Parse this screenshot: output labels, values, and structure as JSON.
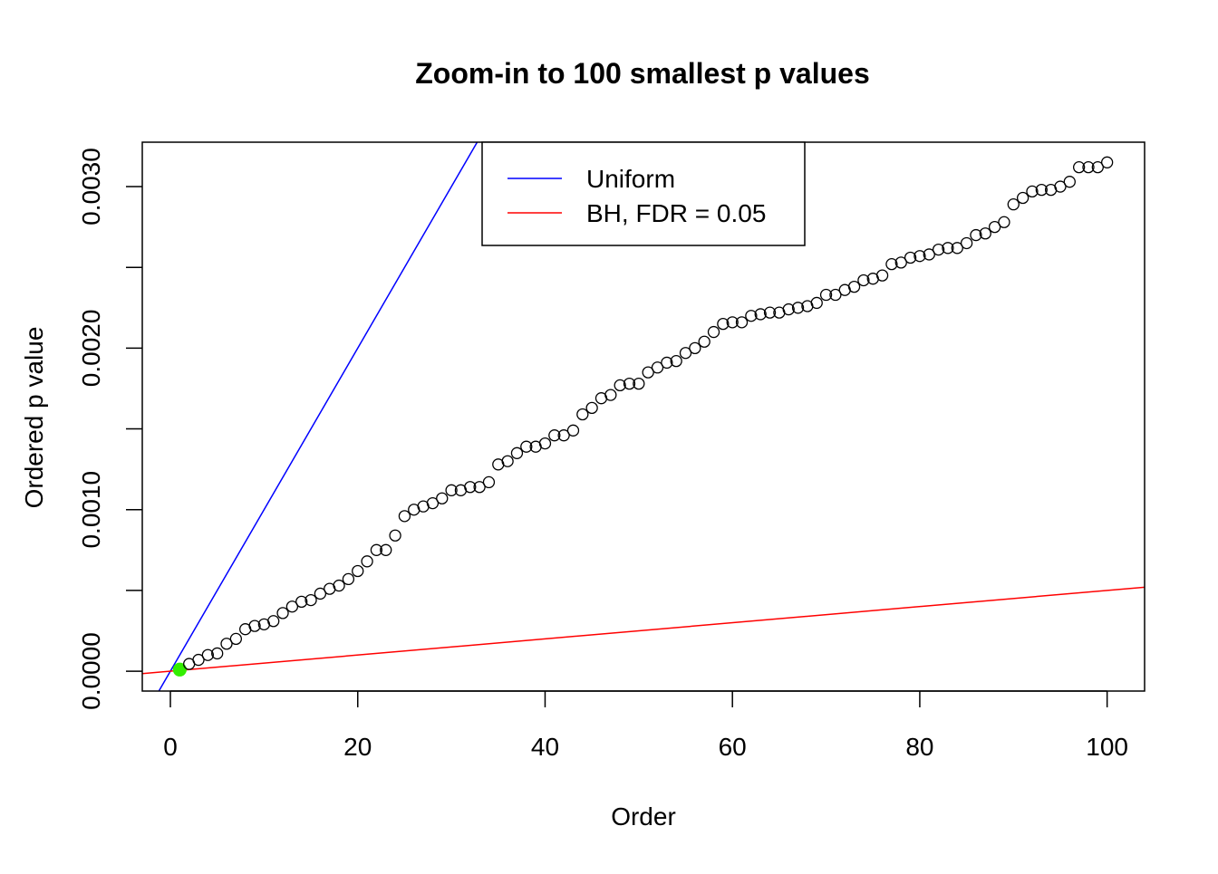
{
  "chart_data": {
    "type": "scatter",
    "title": "Zoom-in to 100 smallest p values",
    "xlabel": "Order",
    "ylabel": "Ordered p value",
    "xlim": [
      -3,
      104
    ],
    "ylim": [
      -0.000123,
      0.003275
    ],
    "x_ticks": [
      0,
      20,
      40,
      60,
      80,
      100
    ],
    "x_tick_labels": [
      "0",
      "20",
      "40",
      "60",
      "80",
      "100"
    ],
    "y_ticks": [
      0,
      0.0005,
      0.001,
      0.0015,
      0.002,
      0.0025,
      0.003
    ],
    "y_tick_labels": [
      "0.0000",
      "",
      "0.0010",
      "",
      "0.0020",
      "",
      "0.0030"
    ],
    "grid": false,
    "legend_position": "top-center",
    "legend": [
      {
        "label": "Uniform",
        "color": "#0000ff"
      },
      {
        "label": "BH, FDR = 0.05",
        "color": "#ff0000"
      }
    ],
    "lines": [
      {
        "name": "Uniform",
        "slope": 0.0001,
        "intercept": 0,
        "color": "#0000ff"
      },
      {
        "name": "BH, FDR = 0.05",
        "slope": 5e-06,
        "intercept": 0,
        "color": "#ff0000"
      }
    ],
    "highlight": {
      "x": 1,
      "color": "#33ee00"
    },
    "series": [
      {
        "name": "Ordered p values",
        "x": [
          1,
          2,
          3,
          4,
          5,
          6,
          7,
          8,
          9,
          10,
          11,
          12,
          13,
          14,
          15,
          16,
          17,
          18,
          19,
          20,
          21,
          22,
          23,
          24,
          25,
          26,
          27,
          28,
          29,
          30,
          31,
          32,
          33,
          34,
          35,
          36,
          37,
          38,
          39,
          40,
          41,
          42,
          43,
          44,
          45,
          46,
          47,
          48,
          49,
          50,
          51,
          52,
          53,
          54,
          55,
          56,
          57,
          58,
          59,
          60,
          61,
          62,
          63,
          64,
          65,
          66,
          67,
          68,
          69,
          70,
          71,
          72,
          73,
          74,
          75,
          76,
          77,
          78,
          79,
          80,
          81,
          82,
          83,
          84,
          85,
          86,
          87,
          88,
          89,
          90,
          91,
          92,
          93,
          94,
          95,
          96,
          97,
          98,
          99,
          100
        ],
        "y": [
          1e-05,
          4.5e-05,
          7e-05,
          0.0001,
          0.00011,
          0.00017,
          0.0002,
          0.00026,
          0.00028,
          0.00029,
          0.00031,
          0.00036,
          0.0004,
          0.00043,
          0.00044,
          0.00048,
          0.00051,
          0.00053,
          0.00057,
          0.00062,
          0.00068,
          0.00075,
          0.00075,
          0.00084,
          0.00096,
          0.001,
          0.00102,
          0.00104,
          0.00107,
          0.00112,
          0.00112,
          0.00114,
          0.00114,
          0.00117,
          0.00128,
          0.0013,
          0.00135,
          0.00139,
          0.00139,
          0.00141,
          0.00146,
          0.00146,
          0.00149,
          0.00159,
          0.00163,
          0.00169,
          0.00171,
          0.00177,
          0.00178,
          0.00178,
          0.00185,
          0.00188,
          0.00191,
          0.00192,
          0.00197,
          0.002,
          0.00204,
          0.0021,
          0.00215,
          0.00216,
          0.00216,
          0.0022,
          0.00221,
          0.00222,
          0.00222,
          0.00224,
          0.00225,
          0.00226,
          0.00228,
          0.00233,
          0.00233,
          0.00236,
          0.00238,
          0.00242,
          0.00243,
          0.00245,
          0.00252,
          0.00253,
          0.00256,
          0.00257,
          0.00258,
          0.00261,
          0.00262,
          0.00262,
          0.00265,
          0.0027,
          0.00271,
          0.00275,
          0.00278,
          0.00289,
          0.00293,
          0.00297,
          0.00298,
          0.00298,
          0.003,
          0.00303,
          0.00312,
          0.00312,
          0.00312,
          0.00315
        ]
      }
    ]
  }
}
